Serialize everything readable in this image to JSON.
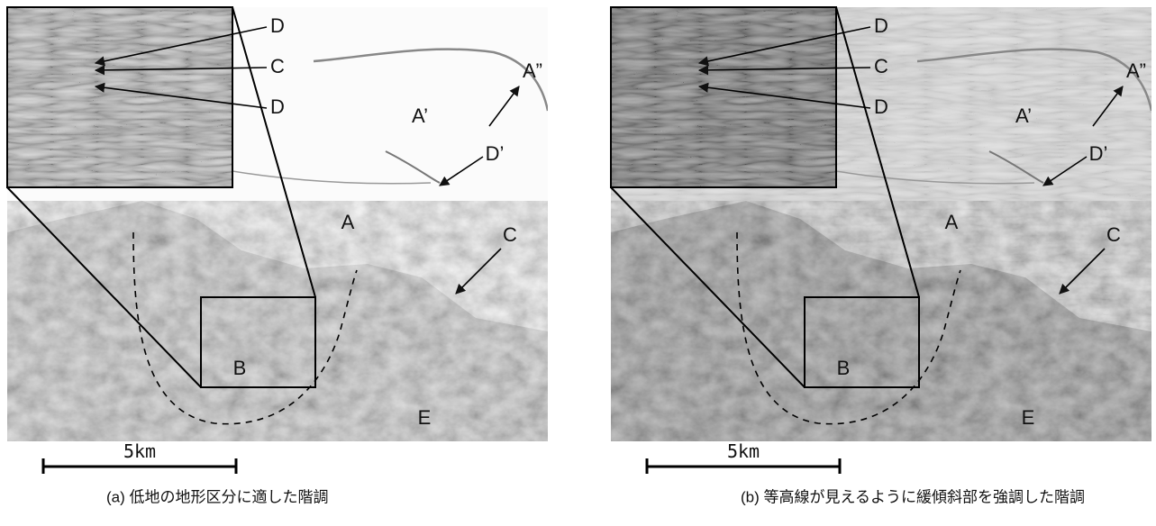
{
  "panels": [
    {
      "caption": "(a) 低地の地形区分に適した階調",
      "labels": [
        "D",
        "C",
        "D",
        "A”",
        "A’",
        "D’",
        "A",
        "C",
        "B",
        "E"
      ],
      "scale": "5km"
    },
    {
      "caption": "(b) 等高線が見えるように緩傾斜部を強調した階調",
      "labels": [
        "D",
        "C",
        "D",
        "A”",
        "A’",
        "D’",
        "A",
        "C",
        "B",
        "E"
      ],
      "scale": "5km"
    }
  ]
}
